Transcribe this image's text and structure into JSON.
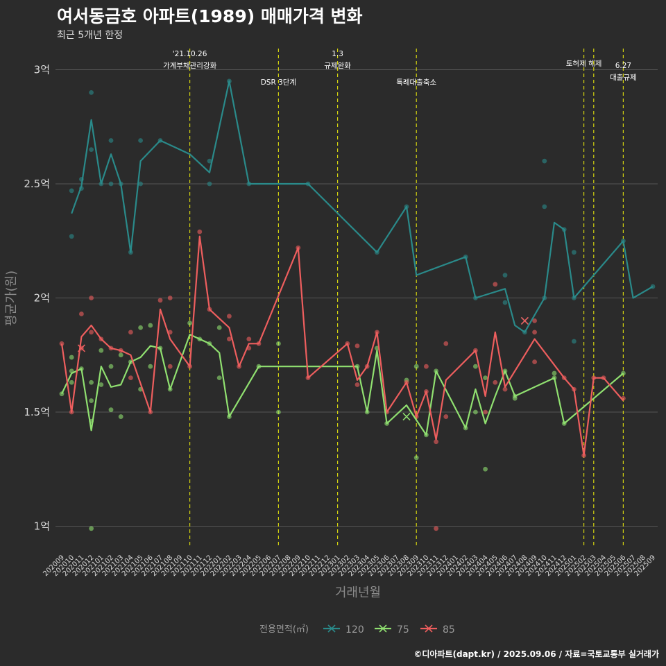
{
  "title": "여서동금호 아파트(1989) 매매가격 변화",
  "subtitle": "최근 5개년 한정",
  "credit": "©디아파트(dapt.kr) / 2025.09.06 / 자료=국토교통부 실거래가",
  "colors": {
    "background": "#2b2b2b",
    "grid": "#555555",
    "annotation_line": "#d4d40f",
    "series_120": "#2a8a8a",
    "series_75": "#90e070",
    "series_85": "#ee5e5e"
  },
  "chart_data": {
    "type": "line",
    "xlabel": "거래년월",
    "ylabel": "평균가(원)",
    "ylim": [
      0.9,
      3.1
    ],
    "y_unit": "억",
    "yticks": [
      {
        "value": 1.0,
        "label": "1억"
      },
      {
        "value": 1.5,
        "label": "1.5억"
      },
      {
        "value": 2.0,
        "label": "2억"
      },
      {
        "value": 2.5,
        "label": "2.5억"
      },
      {
        "value": 3.0,
        "label": "3억"
      }
    ],
    "x_categories": [
      "202009",
      "202010",
      "202011",
      "202012",
      "202101",
      "202102",
      "202103",
      "202104",
      "202105",
      "202106",
      "202107",
      "202108",
      "202109",
      "202110",
      "202111",
      "202112",
      "202201",
      "202202",
      "202203",
      "202204",
      "202205",
      "202206",
      "202207",
      "202208",
      "202209",
      "202210",
      "202211",
      "202212",
      "202301",
      "202302",
      "202303",
      "202304",
      "202305",
      "202306",
      "202307",
      "202308",
      "202309",
      "202310",
      "202311",
      "202312",
      "202401",
      "202402",
      "202403",
      "202404",
      "202405",
      "202406",
      "202407",
      "202408",
      "202409",
      "202410",
      "202411",
      "202412",
      "202501",
      "202502",
      "202503",
      "202504",
      "202505",
      "202506",
      "202507",
      "202508",
      "202509"
    ],
    "annotations": [
      {
        "x": "202110",
        "lines": [
          "'21.10.26",
          "가계부채관리강화"
        ],
        "level": 1
      },
      {
        "x": "202207",
        "lines": [
          "DSR 3단계"
        ],
        "level": 2
      },
      {
        "x": "202301",
        "lines": [
          "1.3",
          "규제완화"
        ],
        "level": 1
      },
      {
        "x": "202309",
        "lines": [
          "특례대출축소"
        ],
        "level": 2
      },
      {
        "x": "202502",
        "lines": [
          "토허제 해제"
        ],
        "level": 1
      },
      {
        "x": "202503",
        "lines": [],
        "level": 1
      },
      {
        "x": "202506",
        "lines": [
          "6.27",
          "대출규제"
        ],
        "level": 3
      }
    ],
    "legend": {
      "title": "전용면적(㎡)",
      "position": "bottom",
      "items": [
        {
          "name": "120",
          "color": "#2a8a8a"
        },
        {
          "name": "75",
          "color": "#90e070"
        },
        {
          "name": "85",
          "color": "#ee5e5e"
        }
      ]
    },
    "series": [
      {
        "name": "120",
        "color": "#2a8a8a",
        "line": [
          [
            "202010",
            2.37
          ],
          [
            "202011",
            2.49
          ],
          [
            "202012",
            2.78
          ],
          [
            "202101",
            2.5
          ],
          [
            "202102",
            2.63
          ],
          [
            "202103",
            2.5
          ],
          [
            "202104",
            2.2
          ],
          [
            "202105",
            2.6
          ],
          [
            "202107",
            2.69
          ],
          [
            "202110",
            2.63
          ],
          [
            "202112",
            2.55
          ],
          [
            "202202",
            2.95
          ],
          [
            "202204",
            2.5
          ],
          [
            "202210",
            2.5
          ],
          [
            "202305",
            2.2
          ],
          [
            "202308",
            2.4
          ],
          [
            "202309",
            2.1
          ],
          [
            "202402",
            2.18
          ],
          [
            "202403",
            2.0
          ],
          [
            "202406",
            2.04
          ],
          [
            "202407",
            1.88
          ],
          [
            "202408",
            1.85
          ],
          [
            "202410",
            2.0
          ],
          [
            "202411",
            2.33
          ],
          [
            "202412",
            2.3
          ],
          [
            "202501",
            2.0
          ],
          [
            "202506",
            2.25
          ],
          [
            "202507",
            2.0
          ],
          [
            "202509",
            2.05
          ]
        ],
        "points": [
          [
            "202010",
            2.47
          ],
          [
            "202010",
            2.27
          ],
          [
            "202011",
            2.48
          ],
          [
            "202011",
            2.52
          ],
          [
            "202012",
            2.9
          ],
          [
            "202012",
            2.65
          ],
          [
            "202101",
            2.5
          ],
          [
            "202102",
            2.69
          ],
          [
            "202102",
            2.5
          ],
          [
            "202103",
            2.5
          ],
          [
            "202104",
            2.2
          ],
          [
            "202105",
            2.69
          ],
          [
            "202105",
            2.5
          ],
          [
            "202107",
            2.69
          ],
          [
            "202112",
            2.6
          ],
          [
            "202112",
            2.5
          ],
          [
            "202202",
            2.95
          ],
          [
            "202204",
            2.5
          ],
          [
            "202210",
            2.5
          ],
          [
            "202305",
            2.2
          ],
          [
            "202308",
            2.4
          ],
          [
            "202402",
            2.18
          ],
          [
            "202403",
            2.0
          ],
          [
            "202406",
            2.1
          ],
          [
            "202406",
            1.98
          ],
          [
            "202408",
            1.85
          ],
          [
            "202410",
            2.6
          ],
          [
            "202410",
            2.4
          ],
          [
            "202410",
            2.0
          ],
          [
            "202412",
            2.3
          ],
          [
            "202501",
            2.2
          ],
          [
            "202501",
            1.81
          ],
          [
            "202501",
            2.0
          ],
          [
            "202506",
            2.25
          ],
          [
            "202509",
            2.05
          ]
        ],
        "crosses": [
          [
            "202408",
            1.9
          ]
        ]
      },
      {
        "name": "75",
        "color": "#90e070",
        "line": [
          [
            "202009",
            1.58
          ],
          [
            "202010",
            1.67
          ],
          [
            "202011",
            1.69
          ],
          [
            "202012",
            1.42
          ],
          [
            "202101",
            1.7
          ],
          [
            "202102",
            1.61
          ],
          [
            "202103",
            1.62
          ],
          [
            "202104",
            1.72
          ],
          [
            "202105",
            1.74
          ],
          [
            "202106",
            1.79
          ],
          [
            "202107",
            1.78
          ],
          [
            "202108",
            1.6
          ],
          [
            "202110",
            1.84
          ],
          [
            "202111",
            1.82
          ],
          [
            "202112",
            1.8
          ],
          [
            "202201",
            1.76
          ],
          [
            "202202",
            1.48
          ],
          [
            "202205",
            1.7
          ],
          [
            "202303",
            1.7
          ],
          [
            "202304",
            1.5
          ],
          [
            "202305",
            1.77
          ],
          [
            "202306",
            1.45
          ],
          [
            "202308",
            1.53
          ],
          [
            "202310",
            1.4
          ],
          [
            "202311",
            1.68
          ],
          [
            "202402",
            1.43
          ],
          [
            "202403",
            1.6
          ],
          [
            "202404",
            1.45
          ],
          [
            "202405",
            1.57
          ],
          [
            "202406",
            1.68
          ],
          [
            "202407",
            1.57
          ],
          [
            "202411",
            1.65
          ],
          [
            "202412",
            1.45
          ],
          [
            "202506",
            1.67
          ]
        ],
        "points": [
          [
            "202009",
            1.58
          ],
          [
            "202010",
            1.74
          ],
          [
            "202010",
            1.63
          ],
          [
            "202010",
            1.68
          ],
          [
            "202011",
            1.69
          ],
          [
            "202012",
            1.63
          ],
          [
            "202012",
            1.55
          ],
          [
            "202012",
            0.99
          ],
          [
            "202012",
            1.46
          ],
          [
            "202101",
            1.77
          ],
          [
            "202101",
            1.62
          ],
          [
            "202102",
            1.7
          ],
          [
            "202102",
            1.51
          ],
          [
            "202103",
            1.48
          ],
          [
            "202103",
            1.75
          ],
          [
            "202104",
            1.72
          ],
          [
            "202105",
            1.87
          ],
          [
            "202105",
            1.6
          ],
          [
            "202106",
            1.88
          ],
          [
            "202106",
            1.7
          ],
          [
            "202107",
            1.78
          ],
          [
            "202108",
            1.6
          ],
          [
            "202110",
            1.89
          ],
          [
            "202111",
            1.82
          ],
          [
            "202112",
            1.8
          ],
          [
            "202201",
            1.87
          ],
          [
            "202201",
            1.65
          ],
          [
            "202202",
            1.48
          ],
          [
            "202205",
            1.7
          ],
          [
            "202207",
            1.8
          ],
          [
            "202207",
            1.5
          ],
          [
            "202303",
            1.7
          ],
          [
            "202304",
            1.5
          ],
          [
            "202305",
            1.78
          ],
          [
            "202306",
            1.45
          ],
          [
            "202308",
            1.64
          ],
          [
            "202309",
            1.3
          ],
          [
            "202309",
            1.7
          ],
          [
            "202310",
            1.4
          ],
          [
            "202311",
            1.68
          ],
          [
            "202402",
            1.43
          ],
          [
            "202403",
            1.7
          ],
          [
            "202403",
            1.5
          ],
          [
            "202404",
            1.25
          ],
          [
            "202404",
            1.65
          ],
          [
            "202406",
            1.68
          ],
          [
            "202407",
            1.57
          ],
          [
            "202407",
            1.56
          ],
          [
            "202411",
            1.67
          ],
          [
            "202411",
            1.65
          ],
          [
            "202412",
            1.45
          ],
          [
            "202506",
            1.67
          ]
        ],
        "crosses": [
          [
            "202308",
            1.48
          ]
        ]
      },
      {
        "name": "85",
        "color": "#ee5e5e",
        "line": [
          [
            "202009",
            1.8
          ],
          [
            "202010",
            1.5
          ],
          [
            "202011",
            1.83
          ],
          [
            "202012",
            1.88
          ],
          [
            "202101",
            1.82
          ],
          [
            "202102",
            1.78
          ],
          [
            "202103",
            1.77
          ],
          [
            "202104",
            1.75
          ],
          [
            "202106",
            1.5
          ],
          [
            "202107",
            1.95
          ],
          [
            "202108",
            1.82
          ],
          [
            "202110",
            1.7
          ],
          [
            "202111",
            2.27
          ],
          [
            "202112",
            1.95
          ],
          [
            "202202",
            1.87
          ],
          [
            "202203",
            1.7
          ],
          [
            "202204",
            1.8
          ],
          [
            "202205",
            1.8
          ],
          [
            "202209",
            2.22
          ],
          [
            "202210",
            1.65
          ],
          [
            "202302",
            1.8
          ],
          [
            "202303",
            1.64
          ],
          [
            "202304",
            1.7
          ],
          [
            "202305",
            1.85
          ],
          [
            "202306",
            1.5
          ],
          [
            "202308",
            1.63
          ],
          [
            "202309",
            1.48
          ],
          [
            "202310",
            1.59
          ],
          [
            "202311",
            1.38
          ],
          [
            "202312",
            1.64
          ],
          [
            "202403",
            1.77
          ],
          [
            "202404",
            1.57
          ],
          [
            "202405",
            1.85
          ],
          [
            "202406",
            1.61
          ],
          [
            "202409",
            1.82
          ],
          [
            "202412",
            1.65
          ],
          [
            "202501",
            1.6
          ],
          [
            "202502",
            1.31
          ],
          [
            "202503",
            1.65
          ],
          [
            "202504",
            1.65
          ],
          [
            "202506",
            1.55
          ]
        ],
        "points": [
          [
            "202009",
            1.8
          ],
          [
            "202010",
            1.5
          ],
          [
            "202011",
            1.93
          ],
          [
            "202011",
            1.78
          ],
          [
            "202012",
            2.0
          ],
          [
            "202012",
            1.85
          ],
          [
            "202101",
            1.82
          ],
          [
            "202102",
            1.78
          ],
          [
            "202103",
            1.77
          ],
          [
            "202104",
            1.85
          ],
          [
            "202104",
            1.65
          ],
          [
            "202106",
            1.5
          ],
          [
            "202107",
            1.99
          ],
          [
            "202108",
            2.0
          ],
          [
            "202108",
            1.85
          ],
          [
            "202108",
            1.7
          ],
          [
            "202110",
            1.7
          ],
          [
            "202111",
            2.29
          ],
          [
            "202112",
            1.95
          ],
          [
            "202202",
            1.92
          ],
          [
            "202202",
            1.82
          ],
          [
            "202203",
            1.7
          ],
          [
            "202204",
            1.82
          ],
          [
            "202204",
            1.78
          ],
          [
            "202205",
            1.8
          ],
          [
            "202209",
            2.22
          ],
          [
            "202210",
            1.65
          ],
          [
            "202302",
            1.8
          ],
          [
            "202303",
            1.79
          ],
          [
            "202303",
            1.62
          ],
          [
            "202304",
            1.7
          ],
          [
            "202305",
            1.85
          ],
          [
            "202306",
            1.5
          ],
          [
            "202308",
            1.63
          ],
          [
            "202309",
            1.48
          ],
          [
            "202310",
            1.59
          ],
          [
            "202310",
            1.7
          ],
          [
            "202311",
            0.99
          ],
          [
            "202311",
            1.37
          ],
          [
            "202312",
            1.8
          ],
          [
            "202312",
            1.48
          ],
          [
            "202403",
            1.77
          ],
          [
            "202404",
            1.5
          ],
          [
            "202405",
            2.06
          ],
          [
            "202405",
            1.63
          ],
          [
            "202406",
            1.6
          ],
          [
            "202409",
            1.9
          ],
          [
            "202409",
            1.85
          ],
          [
            "202409",
            1.72
          ],
          [
            "202412",
            1.65
          ],
          [
            "202501",
            1.6
          ],
          [
            "202502",
            1.31
          ],
          [
            "202503",
            1.65
          ],
          [
            "202504",
            1.65
          ],
          [
            "202506",
            1.56
          ]
        ],
        "crosses": [
          [
            "202011",
            1.78
          ],
          [
            "202408",
            1.9
          ]
        ]
      }
    ]
  }
}
